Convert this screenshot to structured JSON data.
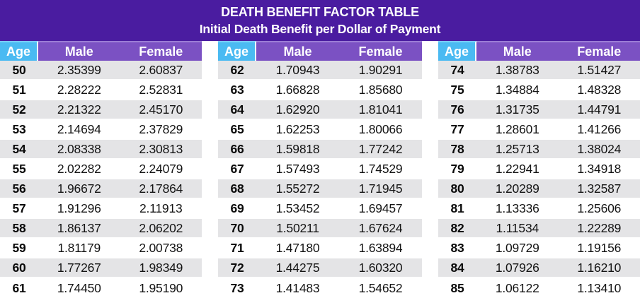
{
  "header": {
    "title": "DEATH BENEFIT FACTOR TABLE",
    "subtitle": "Initial Death Benefit per Dollar of Payment"
  },
  "columns": [
    "Age",
    "Male",
    "Female"
  ],
  "colors": {
    "banner_bg": "#4A1CA0",
    "header_bg": "#7B51C3",
    "header_highlight": "#9B7DD6",
    "age_header_bg": "#4ABAF2",
    "stripe_gray": "#E4E4E6",
    "row_white": "#FFFFFF",
    "text": "#141414"
  },
  "tables": [
    {
      "rows": [
        {
          "age": "50",
          "male": "2.35399",
          "female": "2.60837"
        },
        {
          "age": "51",
          "male": "2.28222",
          "female": "2.52831"
        },
        {
          "age": "52",
          "male": "2.21322",
          "female": "2.45170"
        },
        {
          "age": "53",
          "male": "2.14694",
          "female": "2.37829"
        },
        {
          "age": "54",
          "male": "2.08338",
          "female": "2.30813"
        },
        {
          "age": "55",
          "male": "2.02282",
          "female": "2.24079"
        },
        {
          "age": "56",
          "male": "1.96672",
          "female": "2.17864"
        },
        {
          "age": "57",
          "male": "1.91296",
          "female": "2.11913"
        },
        {
          "age": "58",
          "male": "1.86137",
          "female": "2.06202"
        },
        {
          "age": "59",
          "male": "1.81179",
          "female": "2.00738"
        },
        {
          "age": "60",
          "male": "1.77267",
          "female": "1.98349"
        },
        {
          "age": "61",
          "male": "1.74450",
          "female": "1.95190"
        }
      ]
    },
    {
      "rows": [
        {
          "age": "62",
          "male": "1.70943",
          "female": "1.90291"
        },
        {
          "age": "63",
          "male": "1.66828",
          "female": "1.85680"
        },
        {
          "age": "64",
          "male": "1.62920",
          "female": "1.81041"
        },
        {
          "age": "65",
          "male": "1.62253",
          "female": "1.80066"
        },
        {
          "age": "66",
          "male": "1.59818",
          "female": "1.77242"
        },
        {
          "age": "67",
          "male": "1.57493",
          "female": "1.74529"
        },
        {
          "age": "68",
          "male": "1.55272",
          "female": "1.71945"
        },
        {
          "age": "69",
          "male": "1.53452",
          "female": "1.69457"
        },
        {
          "age": "70",
          "male": "1.50211",
          "female": "1.67624"
        },
        {
          "age": "71",
          "male": "1.47180",
          "female": "1.63894"
        },
        {
          "age": "72",
          "male": "1.44275",
          "female": "1.60320"
        },
        {
          "age": "73",
          "male": "1.41483",
          "female": "1.54652"
        }
      ]
    },
    {
      "rows": [
        {
          "age": "74",
          "male": "1.38783",
          "female": "1.51427"
        },
        {
          "age": "75",
          "male": "1.34884",
          "female": "1.48328"
        },
        {
          "age": "76",
          "male": "1.31735",
          "female": "1.44791"
        },
        {
          "age": "77",
          "male": "1.28601",
          "female": "1.41266"
        },
        {
          "age": "78",
          "male": "1.25713",
          "female": "1.38024"
        },
        {
          "age": "79",
          "male": "1.22941",
          "female": "1.34918"
        },
        {
          "age": "80",
          "male": "1.20289",
          "female": "1.32587"
        },
        {
          "age": "81",
          "male": "1.13336",
          "female": "1.25606"
        },
        {
          "age": "82",
          "male": "1.11534",
          "female": "1.22289"
        },
        {
          "age": "83",
          "male": "1.09729",
          "female": "1.19156"
        },
        {
          "age": "84",
          "male": "1.07926",
          "female": "1.16210"
        },
        {
          "age": "85",
          "male": "1.06122",
          "female": "1.13410"
        }
      ]
    }
  ]
}
